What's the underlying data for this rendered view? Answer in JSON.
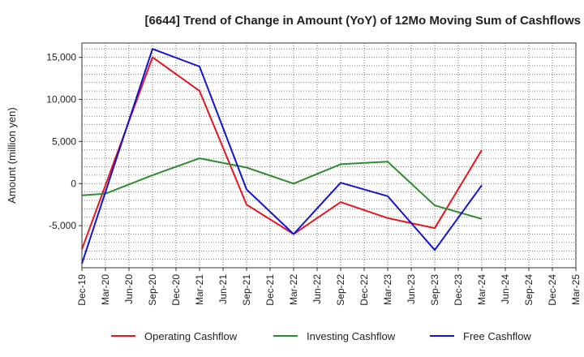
{
  "chart_data": {
    "type": "line",
    "title": "[6644]  Trend of Change in Amount (YoY) of 12Mo Moving Sum of Cashflows",
    "ylabel": "Amount (million yen)",
    "xlabel": "",
    "ylim": [
      -10000,
      16700
    ],
    "y_ticks": [
      -5000,
      0,
      5000,
      10000,
      15000
    ],
    "y_tick_labels": [
      "-5,000",
      "0",
      "5,000",
      "10,000",
      "15,000"
    ],
    "grid": true,
    "legend_position": "bottom",
    "categories": [
      "Dec-19",
      "Mar-20",
      "Jun-20",
      "Sep-20",
      "Dec-20",
      "Mar-21",
      "Jun-21",
      "Sep-21",
      "Dec-21",
      "Mar-22",
      "Jun-22",
      "Sep-22",
      "Dec-22",
      "Mar-23",
      "Jun-23",
      "Sep-23",
      "Dec-23",
      "Mar-24",
      "Jun-24",
      "Sep-24",
      "Dec-24",
      "Mar-25"
    ],
    "series": [
      {
        "name": "Operating Cashflow",
        "color": "#e8141e",
        "points": [
          [
            0,
            -7800
          ],
          [
            3,
            15000
          ],
          [
            5,
            11000
          ],
          [
            7,
            -2500
          ],
          [
            9,
            -6000
          ],
          [
            11,
            -2200
          ],
          [
            13,
            -4100
          ],
          [
            15,
            -5300
          ],
          [
            17,
            4000
          ]
        ]
      },
      {
        "name": "Investing Cashflow",
        "color": "#2e8b2e",
        "points": [
          [
            0,
            -1400
          ],
          [
            1,
            -1200
          ],
          [
            3,
            1000
          ],
          [
            5,
            3000
          ],
          [
            7,
            1900
          ],
          [
            9,
            0
          ],
          [
            11,
            2300
          ],
          [
            13,
            2600
          ],
          [
            15,
            -2600
          ],
          [
            17,
            -4200
          ]
        ]
      },
      {
        "name": "Free Cashflow",
        "color": "#1414d2",
        "points": [
          [
            0,
            -9500
          ],
          [
            3,
            16000
          ],
          [
            5,
            13900
          ],
          [
            7,
            -700
          ],
          [
            9,
            -6000
          ],
          [
            11,
            100
          ],
          [
            13,
            -1500
          ],
          [
            15,
            -7900
          ],
          [
            17,
            -200
          ]
        ]
      }
    ]
  }
}
